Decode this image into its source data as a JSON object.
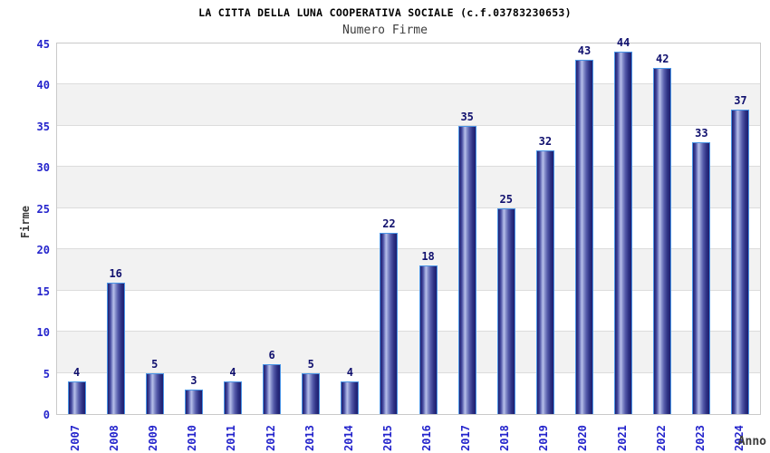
{
  "chart_data": {
    "type": "bar",
    "title": "LA CITTA DELLA LUNA COOPERATIVA SOCIALE (c.f.03783230653)",
    "subtitle": "Numero Firme",
    "xlabel": "Anno",
    "ylabel": "Firme",
    "categories": [
      "2007",
      "2008",
      "2009",
      "2010",
      "2011",
      "2012",
      "2013",
      "2014",
      "2015",
      "2016",
      "2017",
      "2018",
      "2019",
      "2020",
      "2021",
      "2022",
      "2023",
      "2024"
    ],
    "values": [
      4,
      16,
      5,
      3,
      4,
      6,
      5,
      4,
      22,
      18,
      35,
      25,
      32,
      43,
      44,
      42,
      33,
      37
    ],
    "ylim": [
      0,
      45
    ],
    "ytick_step": 5,
    "yticks": [
      0,
      5,
      10,
      15,
      20,
      25,
      30,
      35,
      40,
      45
    ],
    "grid": true,
    "legend": "none",
    "band_colors": [
      "#ffffff",
      "#f2f2f2"
    ],
    "colors": {
      "tick_label": "#2424cc",
      "value_label": "#10106e",
      "bar_border": "#4a95e6",
      "grid": "#dcdcdc",
      "plot_border": "#c9c9c9",
      "title": "#000000",
      "subtitle": "#3c3c3c",
      "bar_gradient_stops": [
        "#1d1d6e 0%",
        "#474ca0 16%",
        "#9ba4da 30%",
        "#b7bfe9 36%",
        "#8b94ce 46%",
        "#565cab 62%",
        "#2e3284 82%",
        "#1d1d6e 100%"
      ]
    }
  }
}
